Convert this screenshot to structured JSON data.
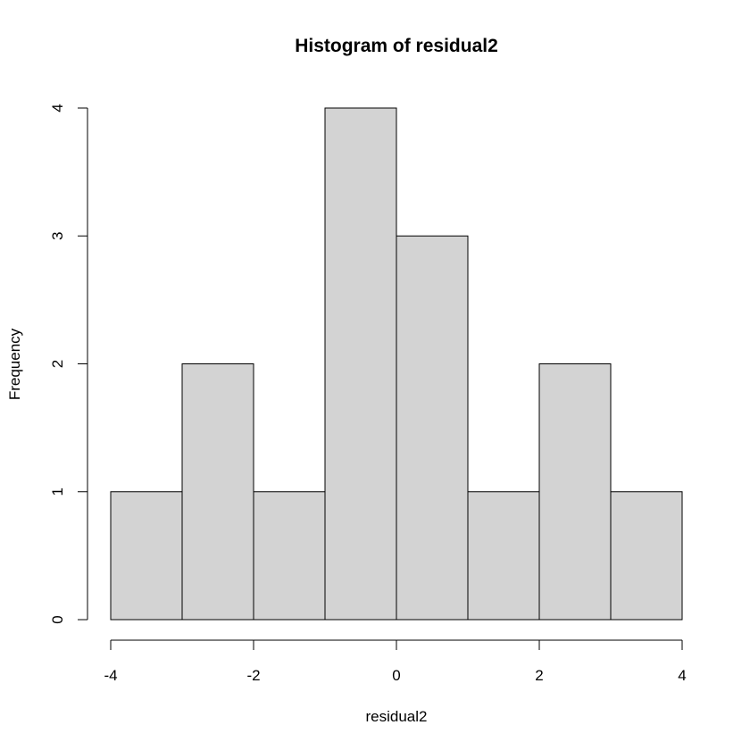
{
  "chart_data": {
    "type": "bar",
    "title": "Histogram of residual2",
    "xlabel": "residual2",
    "ylabel": "Frequency",
    "bins": [
      {
        "from": -4,
        "to": -3,
        "count": 1
      },
      {
        "from": -3,
        "to": -2,
        "count": 2
      },
      {
        "from": -2,
        "to": -1,
        "count": 1
      },
      {
        "from": -1,
        "to": 0,
        "count": 4
      },
      {
        "from": 0,
        "to": 1,
        "count": 3
      },
      {
        "from": 1,
        "to": 2,
        "count": 1
      },
      {
        "from": 2,
        "to": 3,
        "count": 2
      },
      {
        "from": 3,
        "to": 4,
        "count": 1
      }
    ],
    "xlim": [
      -4,
      4
    ],
    "ylim": [
      0,
      4
    ],
    "x_ticks": [
      -4,
      -2,
      0,
      2,
      4
    ],
    "y_ticks": [
      0,
      1,
      2,
      3,
      4
    ],
    "bar_color": "#d3d3d3",
    "grid": false
  }
}
